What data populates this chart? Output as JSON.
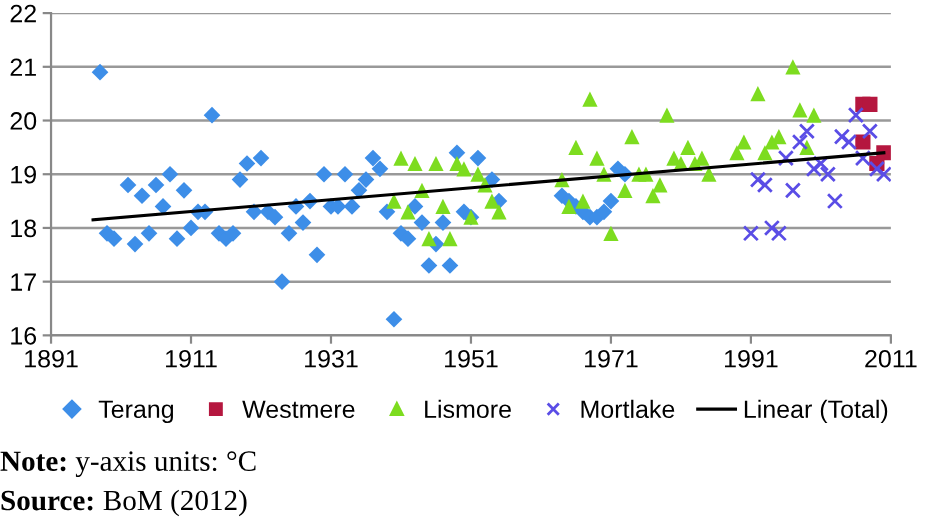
{
  "chart_data": {
    "type": "scatter",
    "xlim": [
      1891,
      2011
    ],
    "xticks": [
      1891,
      1911,
      1931,
      1951,
      1971,
      1991,
      2011
    ],
    "ylim": [
      16,
      22
    ],
    "yticks": [
      16,
      17,
      18,
      19,
      20,
      21,
      22
    ],
    "grid": "y",
    "legend": "bottom",
    "series": [
      {
        "name": "Terang",
        "color": "#3d8ee8",
        "marker": "diamond",
        "x": [
          1898,
          1899,
          1900,
          1902,
          1903,
          1904,
          1905,
          1906,
          1907,
          1908,
          1909,
          1910,
          1911,
          1912,
          1913,
          1914,
          1915,
          1916,
          1917,
          1918,
          1919,
          1920,
          1921,
          1922,
          1923,
          1924,
          1925,
          1926,
          1927,
          1928,
          1929,
          1930,
          1931,
          1932,
          1933,
          1934,
          1935,
          1936,
          1937,
          1938,
          1939,
          1940,
          1941,
          1942,
          1943,
          1944,
          1945,
          1946,
          1947,
          1948,
          1949,
          1950,
          1951,
          1952,
          1954,
          1955,
          1964,
          1965,
          1966,
          1967,
          1968,
          1969,
          1970,
          1971,
          1972,
          1973
        ],
        "values": [
          20.9,
          17.9,
          17.8,
          18.8,
          17.7,
          18.6,
          17.9,
          18.8,
          18.4,
          19.0,
          17.8,
          18.7,
          18.0,
          18.3,
          18.3,
          20.1,
          17.9,
          17.8,
          17.9,
          18.9,
          19.2,
          18.3,
          19.3,
          18.3,
          18.2,
          17.0,
          17.9,
          18.4,
          18.1,
          18.5,
          17.5,
          19.0,
          18.4,
          18.4,
          19.0,
          18.4,
          18.7,
          18.9,
          19.3,
          19.1,
          18.3,
          16.3,
          17.9,
          17.8,
          18.4,
          18.1,
          17.3,
          17.7,
          18.1,
          17.3,
          19.4,
          18.3,
          18.2,
          19.3,
          18.9,
          18.5,
          18.6,
          18.5,
          18.4,
          18.3,
          18.2,
          18.2,
          18.3,
          18.5,
          19.1,
          19.0
        ]
      },
      {
        "name": "Westmere",
        "color": "#b5173f",
        "marker": "square",
        "x": [
          2007,
          2008,
          2007,
          2010,
          2009
        ],
        "values": [
          20.3,
          20.3,
          19.6,
          19.4,
          19.2
        ]
      },
      {
        "name": "Lismore",
        "color": "#7ddc1f",
        "marker": "triangle",
        "x": [
          1940,
          1941,
          1942,
          1943,
          1944,
          1945,
          1946,
          1947,
          1948,
          1949,
          1950,
          1951,
          1952,
          1953,
          1954,
          1955,
          1964,
          1965,
          1966,
          1967,
          1968,
          1969,
          1970,
          1971,
          1973,
          1974,
          1975,
          1976,
          1977,
          1978,
          1979,
          1980,
          1981,
          1982,
          1983,
          1984,
          1985,
          1989,
          1990,
          1992,
          1993,
          1994,
          1995,
          1997,
          1998,
          1999,
          2000
        ],
        "values": [
          18.5,
          19.3,
          18.3,
          19.2,
          18.7,
          17.8,
          19.2,
          18.4,
          17.8,
          19.2,
          19.1,
          18.2,
          19.0,
          18.8,
          18.5,
          18.3,
          18.9,
          18.4,
          19.5,
          18.5,
          20.4,
          19.3,
          19.0,
          17.9,
          18.7,
          19.7,
          19.0,
          19.0,
          18.6,
          18.8,
          20.1,
          19.3,
          19.2,
          19.5,
          19.2,
          19.3,
          19.0,
          19.4,
          19.6,
          20.5,
          19.4,
          19.6,
          19.7,
          21.0,
          20.2,
          19.5,
          20.1
        ]
      },
      {
        "name": "Mortlake",
        "color": "#5a4de6",
        "marker": "cross",
        "x": [
          1991,
          1992,
          1993,
          1994,
          1995,
          1996,
          1997,
          1998,
          1999,
          2000,
          2001,
          2002,
          2003,
          2004,
          2005,
          2006,
          2007,
          2008,
          2009,
          2010
        ],
        "values": [
          17.9,
          18.9,
          18.8,
          18.0,
          17.9,
          19.3,
          18.7,
          19.6,
          19.8,
          19.1,
          19.2,
          19.0,
          18.5,
          19.7,
          19.6,
          20.1,
          19.3,
          19.8,
          19.1,
          19.0
        ]
      },
      {
        "name": "Linear (Total)",
        "type": "line",
        "color": "#000000",
        "marker": "none",
        "line_style": "solid",
        "x": [
          1897,
          2010
        ],
        "values": [
          18.15,
          19.4
        ]
      }
    ],
    "annotations": [
      "Note: y-axis units: °C",
      "Source: BoM (2012)"
    ]
  }
}
